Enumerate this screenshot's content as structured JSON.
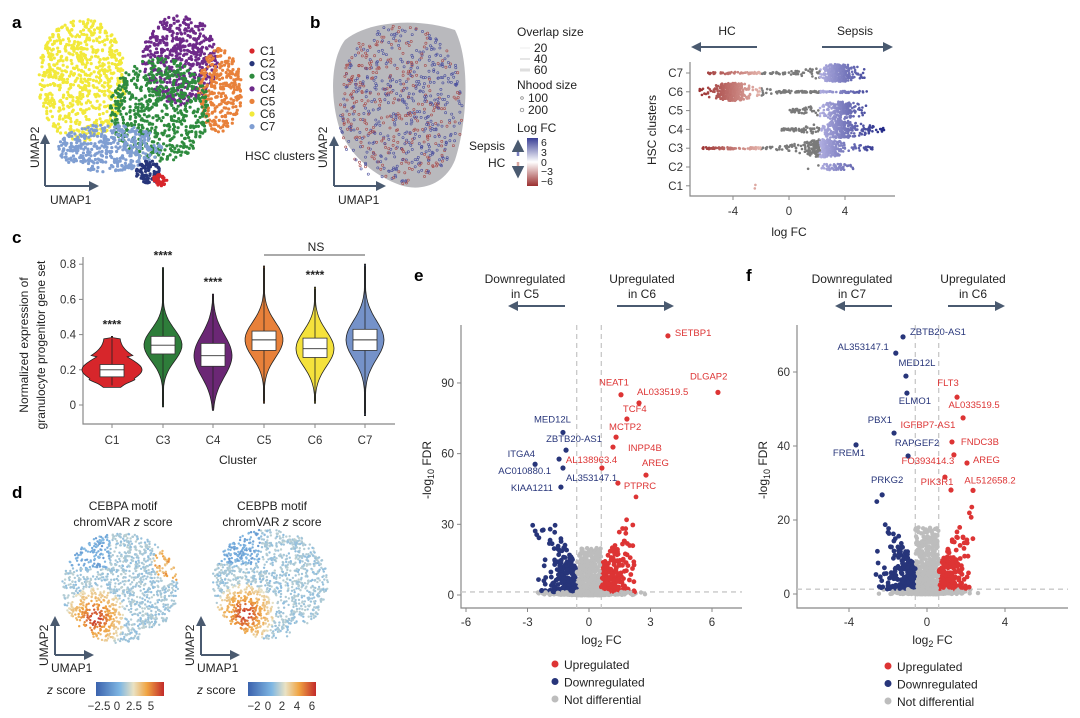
{
  "panel_labels": {
    "a": "a",
    "b": "b",
    "c": "c",
    "d": "d",
    "e": "e",
    "f": "f"
  },
  "chart_data": [
    {
      "id": "a",
      "type": "scatter",
      "xlabel": "UMAP1",
      "ylabel": "UMAP2",
      "legend_title": "HSC clusters",
      "legend": [
        {
          "label": "C1",
          "color": "#d7262b"
        },
        {
          "label": "C2",
          "color": "#27357a"
        },
        {
          "label": "C3",
          "color": "#2e8b3e"
        },
        {
          "label": "C4",
          "color": "#6e2a8a"
        },
        {
          "label": "C5",
          "color": "#e8813a"
        },
        {
          "label": "C6",
          "color": "#f2e93a"
        },
        {
          "label": "C7",
          "color": "#7f9ed2"
        }
      ],
      "legend_placement": "right"
    },
    {
      "id": "b-umap",
      "type": "scatter",
      "xlabel": "UMAP1",
      "ylabel": "UMAP2",
      "legend": {
        "overlap_title": "Overlap size",
        "overlap_values": [
          "20",
          "40",
          "60"
        ],
        "nhood_title": "Nhood size",
        "nhood_values": [
          "100",
          "200"
        ],
        "logfc_title": "Log FC",
        "logfc_ticks": [
          "6",
          "3",
          "0",
          "−3",
          "−6"
        ],
        "up_label": "Sepsis",
        "down_label": "HC",
        "colors": {
          "high": "#3a3f96",
          "mid": "#ffffff",
          "low": "#9b3030"
        }
      }
    },
    {
      "id": "b-beeswarm",
      "type": "scatter",
      "title_left": "HC",
      "title_right": "Sepsis",
      "xlabel": "log FC",
      "ylabel": "HSC clusters",
      "xticks": [
        "-4",
        "0",
        "4"
      ],
      "xlim": [
        -6.8,
        7.5
      ],
      "categories": [
        "C7",
        "C6",
        "C5",
        "C4",
        "C3",
        "C2",
        "C1"
      ],
      "rows": [
        {
          "cluster": "C7",
          "logFC_range": [
            -5.8,
            5.4
          ],
          "peak": 3.5,
          "n": 420
        },
        {
          "cluster": "C6",
          "logFC_range": [
            -6.4,
            5.6
          ],
          "peak": -4.0,
          "n": 480
        },
        {
          "cluster": "C5",
          "logFC_range": [
            0.0,
            5.5
          ],
          "peak": 3.7,
          "n": 260
        },
        {
          "cluster": "C4",
          "logFC_range": [
            -0.6,
            6.8
          ],
          "peak": 3.7,
          "n": 330
        },
        {
          "cluster": "C3",
          "logFC_range": [
            -6.3,
            6.0
          ],
          "peak": 2.5,
          "n": 480
        },
        {
          "cluster": "C2",
          "logFC_range": [
            1.3,
            4.6
          ],
          "peak": 3.6,
          "n": 60
        },
        {
          "cluster": "C1",
          "logFC_range": [
            -2.6,
            -2.3
          ],
          "peak": -2.5,
          "n": 2
        }
      ],
      "colors": {
        "hc": "#a33a3a",
        "neutral": "#7a7a7a",
        "sepsis": "#4a4c9e"
      }
    },
    {
      "id": "c",
      "type": "violin",
      "xlabel": "Cluster",
      "ylabel_line1": "Normalized expression of",
      "ylabel_line2": "granulocyte progenitor gene set",
      "ylim": [
        -0.1,
        0.85
      ],
      "yticks": [
        "0",
        "0.2",
        "0.4",
        "0.6",
        "0.8"
      ],
      "categories": [
        "C1",
        "C3",
        "C4",
        "C5",
        "C6",
        "C7"
      ],
      "series": [
        {
          "cluster": "C1",
          "color": "#d7262b",
          "min": 0.1,
          "q1": 0.16,
          "median": 0.2,
          "q3": 0.23,
          "max": 0.39,
          "signif": "****"
        },
        {
          "cluster": "C3",
          "color": "#2e7d3a",
          "min": -0.01,
          "q1": 0.29,
          "median": 0.34,
          "q3": 0.39,
          "max": 0.78,
          "signif": "****"
        },
        {
          "cluster": "C4",
          "color": "#6b2775",
          "min": -0.03,
          "q1": 0.22,
          "median": 0.28,
          "q3": 0.35,
          "max": 0.63,
          "signif": "****"
        },
        {
          "cluster": "C5",
          "color": "#e8813a",
          "min": 0.01,
          "q1": 0.31,
          "median": 0.37,
          "q3": 0.42,
          "max": 0.79,
          "signif": ""
        },
        {
          "cluster": "C6",
          "color": "#f5e23c",
          "min": 0.01,
          "q1": 0.27,
          "median": 0.32,
          "q3": 0.38,
          "max": 0.67,
          "signif": "****"
        },
        {
          "cluster": "C7",
          "color": "#7592c9",
          "min": -0.06,
          "q1": 0.31,
          "median": 0.37,
          "q3": 0.43,
          "max": 0.8,
          "signif": ""
        }
      ],
      "bracket": {
        "from": "C5",
        "to": "C7",
        "label": "NS"
      }
    },
    {
      "id": "d",
      "type": "scatter",
      "panels": [
        {
          "title_line1": "CEBPA motif",
          "title_pre": "chromVAR ",
          "title_italic": "z",
          "title_post": " score",
          "colorbar_label_italic": "z",
          "colorbar_label": " score",
          "ticks": [
            "−2.5",
            "0",
            "2.5",
            "5"
          ]
        },
        {
          "title_line1": "CEBPB motif",
          "title_pre": "chromVAR ",
          "title_italic": "z",
          "title_post": " score",
          "colorbar_label_italic": "z",
          "colorbar_label": " score",
          "ticks": [
            "−2",
            "0",
            "2",
            "4",
            "6"
          ]
        }
      ],
      "xlabel": "UMAP1",
      "ylabel": "UMAP2",
      "colormap": [
        "#3b62ad",
        "#7fb7e3",
        "#e9e2c4",
        "#f0a442",
        "#c22a2a"
      ]
    },
    {
      "id": "e",
      "type": "scatter",
      "header_left_line1": "Downregulated",
      "header_left_line2": "in C5",
      "header_right_line1": "Upregulated",
      "header_right_line2": "in C6",
      "xlabel_main": "log",
      "xlabel_sub": "2",
      "xlabel_rest": " FC",
      "ylabel_main": "-log",
      "ylabel_sub": "10",
      "ylabel_rest": " FDR",
      "xticks": [
        "-6",
        "-3",
        "0",
        "3",
        "6"
      ],
      "yticks": [
        "0",
        "30",
        "60",
        "90"
      ],
      "xlim": [
        -6.3,
        7
      ],
      "ylim": [
        -5,
        118
      ],
      "fc_threshold": 0.6,
      "fdr_threshold": 1.3,
      "labeled_genes": [
        {
          "gene": "SETBP1",
          "log2fc": 3.85,
          "neglog10fdr": 110,
          "status": "up"
        },
        {
          "gene": "DLGAP2",
          "log2fc": 6.29,
          "neglog10fdr": 86,
          "status": "up"
        },
        {
          "gene": "NEAT1",
          "log2fc": 1.56,
          "neglog10fdr": 85,
          "status": "up"
        },
        {
          "gene": "AL033519.5",
          "log2fc": 2.44,
          "neglog10fdr": 81.5,
          "status": "up"
        },
        {
          "gene": "TCF4",
          "log2fc": 1.85,
          "neglog10fdr": 74.7,
          "status": "up"
        },
        {
          "gene": "MCTP2",
          "log2fc": 1.32,
          "neglog10fdr": 67,
          "status": "up"
        },
        {
          "gene": "INPP4B",
          "log2fc": 1.17,
          "neglog10fdr": 62.8,
          "status": "up"
        },
        {
          "gene": "AL138963.4",
          "log2fc": 0.63,
          "neglog10fdr": 53.9,
          "status": "up"
        },
        {
          "gene": "AREG",
          "log2fc": 2.78,
          "neglog10fdr": 50.9,
          "status": "up"
        },
        {
          "gene": "PTPRC",
          "log2fc": 1.41,
          "neglog10fdr": 47.5,
          "status": "up"
        },
        {
          "gene": "MED12L",
          "log2fc": -1.27,
          "neglog10fdr": 69,
          "status": "down"
        },
        {
          "gene": "ZBTB20-AS1",
          "log2fc": -1.12,
          "neglog10fdr": 61.5,
          "status": "down"
        },
        {
          "gene": "ITGA4",
          "log2fc": -1.46,
          "neglog10fdr": 57.7,
          "status": "down"
        },
        {
          "gene": "AC010880.1",
          "log2fc": -2.63,
          "neglog10fdr": 55.5,
          "status": "down"
        },
        {
          "gene": "AL353147.1",
          "log2fc": -1.27,
          "neglog10fdr": 53.9,
          "status": "down"
        },
        {
          "gene": "KIAA1211",
          "log2fc": -1.37,
          "neglog10fdr": 45.8,
          "status": "down"
        }
      ],
      "legend": [
        {
          "label": "Upregulated",
          "color": "#dd3434"
        },
        {
          "label": "Downregulated",
          "color": "#27357a"
        },
        {
          "label": "Not differential",
          "color": "#bdbdbd"
        }
      ]
    },
    {
      "id": "f",
      "type": "scatter",
      "header_left_line1": "Downregulated",
      "header_left_line2": "in C7",
      "header_right_line1": "Upregulated",
      "header_right_line2": "in C6",
      "xlabel_main": "log",
      "xlabel_sub": "2",
      "xlabel_rest": " FC",
      "ylabel_main": "-log",
      "ylabel_sub": "10",
      "ylabel_rest": " FDR",
      "xticks": [
        "-4",
        "0",
        "4"
      ],
      "yticks": [
        "0",
        "20",
        "40",
        "60"
      ],
      "xlim": [
        -6.8,
        7.2
      ],
      "ylim": [
        -3,
        72
      ],
      "fc_threshold": 0.6,
      "fdr_threshold": 1.3,
      "labeled_genes": [
        {
          "gene": "ZBTB20-AS1",
          "log2fc": -1.23,
          "neglog10fdr": 69.5,
          "status": "down"
        },
        {
          "gene": "AL353147.1",
          "log2fc": -1.6,
          "neglog10fdr": 65.1,
          "status": "down"
        },
        {
          "gene": "MED12L",
          "log2fc": -1.08,
          "neglog10fdr": 58.9,
          "status": "down"
        },
        {
          "gene": "ELMO1",
          "log2fc": -1.03,
          "neglog10fdr": 54.3,
          "status": "down"
        },
        {
          "gene": "FLT3",
          "log2fc": 1.54,
          "neglog10fdr": 53.2,
          "status": "up"
        },
        {
          "gene": "AL033519.5",
          "log2fc": 1.85,
          "neglog10fdr": 47.6,
          "status": "up"
        },
        {
          "gene": "PBX1",
          "log2fc": -1.69,
          "neglog10fdr": 43.5,
          "status": "down"
        },
        {
          "gene": "IGFBP7-AS1",
          "log2fc": 1.28,
          "neglog10fdr": 41.1,
          "status": "up"
        },
        {
          "gene": "FREM1",
          "log2fc": -3.64,
          "neglog10fdr": 40.3,
          "status": "down"
        },
        {
          "gene": "FNDC3B",
          "log2fc": 1.38,
          "neglog10fdr": 37.6,
          "status": "up"
        },
        {
          "gene": "RAPGEF2",
          "log2fc": -0.97,
          "neglog10fdr": 37.3,
          "status": "down"
        },
        {
          "gene": "FO393414.3",
          "log2fc": 0.92,
          "neglog10fdr": 31.6,
          "status": "up"
        },
        {
          "gene": "AREG",
          "log2fc": 2.05,
          "neglog10fdr": 35.4,
          "status": "up"
        },
        {
          "gene": "PRKG2",
          "log2fc": -2.3,
          "neglog10fdr": 26.8,
          "status": "down"
        },
        {
          "gene": "PIK3R1",
          "log2fc": 1.23,
          "neglog10fdr": 28.1,
          "status": "up"
        },
        {
          "gene": "AL512658.2",
          "log2fc": 2.36,
          "neglog10fdr": 28,
          "status": "up"
        }
      ],
      "legend": [
        {
          "label": "Upregulated",
          "color": "#dd3434"
        },
        {
          "label": "Downregulated",
          "color": "#27357a"
        },
        {
          "label": "Not differential",
          "color": "#bdbdbd"
        }
      ]
    }
  ]
}
